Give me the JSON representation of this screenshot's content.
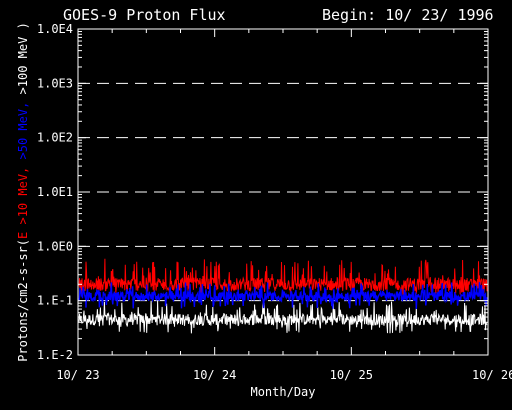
{
  "chart_data": {
    "type": "line",
    "title": "GOES-9 Proton Flux",
    "begin_label": "Begin: 10/ 23/ 1996",
    "xlabel": "Month/Day",
    "ylabel_parts": [
      {
        "text": "Protons/cm2-s-sr(",
        "color": "#ffffff"
      },
      {
        "text": "E >10 MeV, ",
        "color": "#ff0000"
      },
      {
        "text": ">50 MeV, ",
        "color": "#0000ff"
      },
      {
        "text": ">100 MeV )",
        "color": "#ffffff"
      }
    ],
    "y_scale": "log",
    "ylim": [
      0.01,
      10000
    ],
    "y_ticks": [
      {
        "value": 0.01,
        "label": "1.E-2"
      },
      {
        "value": 0.1,
        "label": "1.E-1"
      },
      {
        "value": 1,
        "label": "1.0E0"
      },
      {
        "value": 10,
        "label": "1.0E1"
      },
      {
        "value": 100,
        "label": "1.0E2"
      },
      {
        "value": 1000,
        "label": "1.0E3"
      },
      {
        "value": 10000,
        "label": "1.0E4"
      }
    ],
    "xlim": [
      "1996-10-23",
      "1996-10-26"
    ],
    "x_ticks": [
      {
        "value": "1996-10-23",
        "label": "10/ 23"
      },
      {
        "value": "1996-10-24",
        "label": "10/ 24"
      },
      {
        "value": "1996-10-25",
        "label": "10/ 25"
      },
      {
        "value": "1996-10-26",
        "label": "10/ 26"
      }
    ],
    "grid": "dashed horizontal at decades",
    "series": [
      {
        "name": ">100 MeV",
        "color": "#ffffff",
        "low": 0.025,
        "high": 0.1,
        "typical": 0.045
      },
      {
        "name": ">10 MeV",
        "color": "#ff0000",
        "low": 0.12,
        "high": 0.6,
        "typical": 0.2
      },
      {
        "name": ">50 MeV",
        "color": "#0000ff",
        "low": 0.07,
        "high": 0.22,
        "typical": 0.12
      }
    ]
  }
}
